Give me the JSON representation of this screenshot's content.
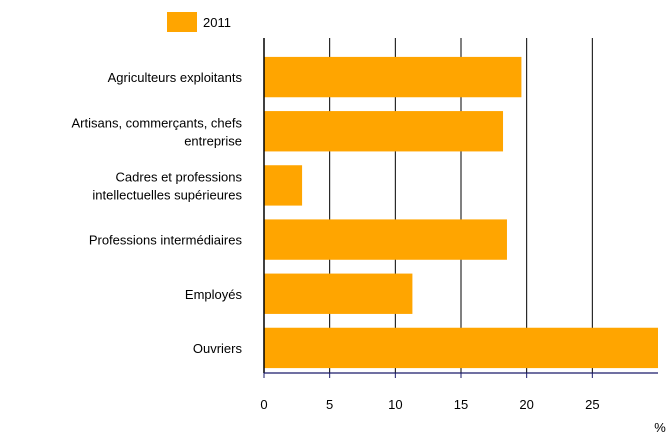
{
  "chart_data": {
    "type": "bar",
    "orientation": "horizontal",
    "title": "",
    "xlabel": "",
    "ylabel": "",
    "unit": "%",
    "categories": [
      [
        "Agriculteurs exploitants"
      ],
      [
        "Artisans, commerçants, chefs",
        "entreprise"
      ],
      [
        "Cadres et professions",
        "intellectuelles supérieures"
      ],
      [
        "Professions intermédiaires"
      ],
      [
        "Employés"
      ],
      [
        "Ouvriers"
      ]
    ],
    "series": [
      {
        "name": "2011",
        "color": "#FFA500",
        "values": [
          19.6,
          18.2,
          2.9,
          18.5,
          11.3,
          30.0
        ]
      }
    ],
    "xlim": [
      0,
      30
    ],
    "xticks": [
      0,
      5,
      10,
      15,
      20,
      25
    ],
    "grid": true,
    "legend": "top-left"
  }
}
